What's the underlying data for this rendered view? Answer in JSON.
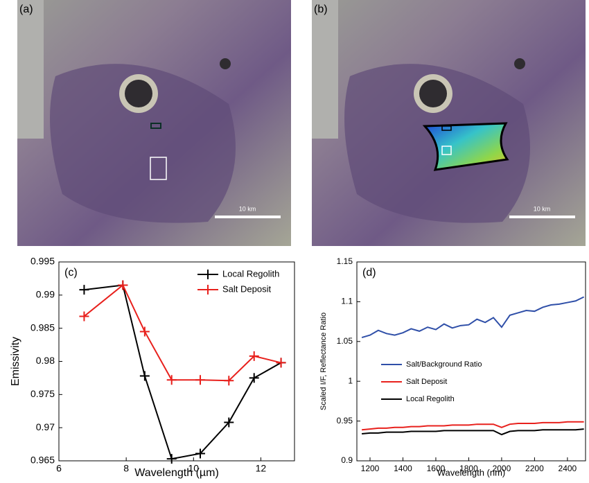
{
  "image_panels": [
    {
      "label": "(a)",
      "scale_bar": "10 km"
    },
    {
      "label": "(b)",
      "scale_bar": "10 km"
    }
  ],
  "chart_data": [
    {
      "type": "line",
      "label": "(c)",
      "x_label": "Wavelength (µm)",
      "y_label": "Emissivity",
      "markers": true,
      "legend": "upper right",
      "xlim": [
        6,
        13
      ],
      "xticks": [
        6,
        8,
        10,
        12
      ],
      "ylim": [
        0.965,
        0.995
      ],
      "yticks": [
        0.965,
        0.97,
        0.975,
        0.98,
        0.985,
        0.99,
        0.995
      ],
      "series": [
        {
          "name": "Local Regolith",
          "color": "#000000",
          "x": [
            6.75,
            7.9,
            8.55,
            9.35,
            10.2,
            11.05,
            11.8,
            12.6
          ],
          "values": [
            0.9908,
            0.9915,
            0.9778,
            0.9653,
            0.9661,
            0.9708,
            0.9775,
            0.9798
          ]
        },
        {
          "name": "Salt Deposit",
          "color": "#e8201c",
          "x": [
            6.75,
            7.9,
            8.55,
            9.35,
            10.2,
            11.05,
            11.8,
            12.6
          ],
          "values": [
            0.9868,
            0.9915,
            0.9845,
            0.9772,
            0.9772,
            0.9771,
            0.9808,
            0.9798
          ]
        }
      ]
    },
    {
      "type": "line",
      "label": "(d)",
      "x_label": "Wavelength (nm)",
      "y_label": "Scaled I/F, Reflectance Ratio",
      "markers": false,
      "legend": "center",
      "xlim": [
        1120,
        2510
      ],
      "xticks": [
        1200,
        1400,
        1600,
        1800,
        2000,
        2200,
        2400
      ],
      "ylim": [
        0.9,
        1.15
      ],
      "yticks": [
        0.9,
        0.95,
        1,
        1.05,
        1.1,
        1.15
      ],
      "series": [
        {
          "name": "Salt/Background Ratio",
          "color": "#2f4fa8",
          "x": [
            1150,
            1200,
            1250,
            1300,
            1350,
            1400,
            1450,
            1500,
            1550,
            1600,
            1650,
            1700,
            1750,
            1800,
            1850,
            1900,
            1950,
            2000,
            2050,
            2100,
            2150,
            2200,
            2250,
            2300,
            2350,
            2400,
            2450,
            2500
          ],
          "values": [
            1.055,
            1.058,
            1.064,
            1.06,
            1.058,
            1.061,
            1.066,
            1.063,
            1.068,
            1.065,
            1.072,
            1.067,
            1.07,
            1.071,
            1.078,
            1.074,
            1.08,
            1.068,
            1.083,
            1.086,
            1.089,
            1.088,
            1.093,
            1.096,
            1.097,
            1.099,
            1.101,
            1.106
          ]
        },
        {
          "name": "Salt Deposit",
          "color": "#e8201c",
          "x": [
            1150,
            1200,
            1250,
            1300,
            1350,
            1400,
            1450,
            1500,
            1550,
            1600,
            1650,
            1700,
            1750,
            1800,
            1850,
            1900,
            1950,
            2000,
            2050,
            2100,
            2150,
            2200,
            2250,
            2300,
            2350,
            2400,
            2450,
            2500
          ],
          "values": [
            0.939,
            0.94,
            0.941,
            0.941,
            0.942,
            0.942,
            0.943,
            0.943,
            0.944,
            0.944,
            0.944,
            0.945,
            0.945,
            0.945,
            0.946,
            0.946,
            0.946,
            0.942,
            0.946,
            0.947,
            0.947,
            0.947,
            0.948,
            0.948,
            0.948,
            0.949,
            0.949,
            0.949
          ]
        },
        {
          "name": "Local Regolith",
          "color": "#000000",
          "x": [
            1150,
            1200,
            1250,
            1300,
            1350,
            1400,
            1450,
            1500,
            1550,
            1600,
            1650,
            1700,
            1750,
            1800,
            1850,
            1900,
            1950,
            2000,
            2050,
            2100,
            2150,
            2200,
            2250,
            2300,
            2350,
            2400,
            2450,
            2500
          ],
          "values": [
            0.934,
            0.935,
            0.935,
            0.936,
            0.936,
            0.936,
            0.937,
            0.937,
            0.937,
            0.937,
            0.938,
            0.938,
            0.938,
            0.938,
            0.938,
            0.938,
            0.938,
            0.933,
            0.937,
            0.938,
            0.938,
            0.938,
            0.939,
            0.939,
            0.939,
            0.939,
            0.939,
            0.94
          ]
        }
      ]
    }
  ]
}
